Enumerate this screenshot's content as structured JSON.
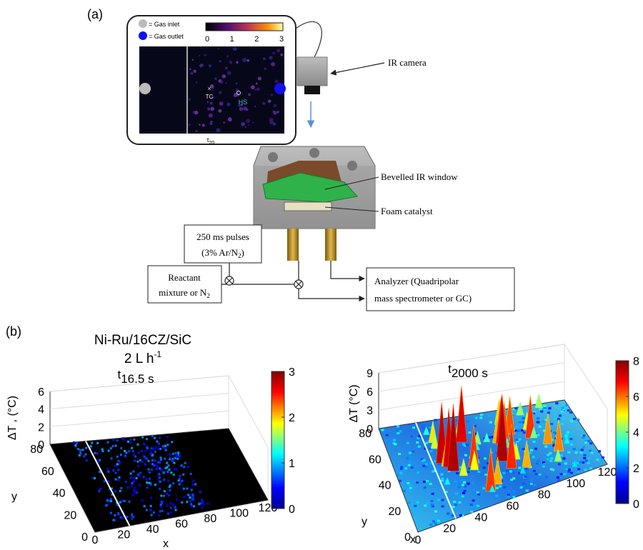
{
  "panel_a": {
    "label": "(a)",
    "legend": [
      "= Gas inlet",
      "= Gas outlet"
    ],
    "colorbar_ticks": [
      0,
      1,
      2,
      3
    ],
    "markers": [
      "TC",
      "HS"
    ],
    "frame_label": {
      "base": "t",
      "sub": "20"
    },
    "callouts": [
      "IR camera",
      "Bevelled IR window",
      "Foam catalyst"
    ],
    "pulse_box": {
      "line1": "250 ms pulses",
      "line2": {
        "text": "(3% Ar/N",
        "sub": "2",
        "tail": ")"
      }
    },
    "reactant_box": {
      "line1": "Reactant",
      "line2": {
        "text": "mixture or N",
        "sub": "2"
      }
    },
    "analyzer_box": [
      "Analyzer (Quadripolar",
      "mass spectrometer or GC)"
    ]
  },
  "panel_b": {
    "label": "(b)",
    "title": "Ni-Ru/16CZ/SiC",
    "subtitle": {
      "text": "2 L h",
      "sup": "-1"
    },
    "plots": [
      {
        "time": {
          "base": "t",
          "sub": "16.5 s"
        },
        "zlabel": "ΔT , (°C)",
        "zticks": [
          0,
          2,
          4,
          6
        ],
        "yticks": [
          0,
          20,
          40,
          60,
          80
        ],
        "xticks": [
          0,
          20,
          40,
          60,
          80,
          100,
          120
        ],
        "xlabel": "x",
        "ylabel": "y",
        "colorbar_ticks": [
          0,
          1,
          2,
          3
        ]
      },
      {
        "time": {
          "base": "t",
          "sub": "2000 s"
        },
        "zlabel": "ΔT (°C)",
        "zticks": [
          0,
          3,
          6,
          9
        ],
        "yticks": [
          0,
          20,
          40,
          60,
          80
        ],
        "xticks": [
          0,
          20,
          40,
          60,
          80,
          100,
          120
        ],
        "xlabel": "x",
        "ylabel": "y",
        "colorbar_ticks": [
          0,
          2,
          4,
          6,
          8
        ]
      }
    ]
  }
}
